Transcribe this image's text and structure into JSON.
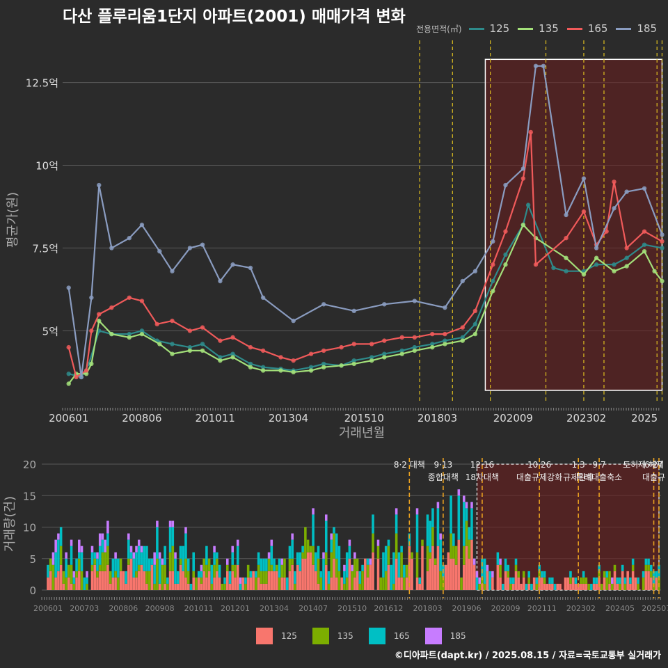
{
  "title": "다산 플루리움1단지 아파트(2001) 매매가격 변화",
  "source": "©디아파트(dapt.kr) / 2025.08.15 / 자료=국토교통부 실거래가",
  "colors": {
    "125": "#2e8b8b",
    "135": "#a3e07a",
    "165": "#f05a5a",
    "185": "#8a9cc0",
    "bar125": "#f8766d",
    "bar135": "#7cae00",
    "bar165": "#00bfc4",
    "bar185": "#c77cff"
  },
  "legend_top": {
    "title": "전용면적(㎡)",
    "items": [
      "125",
      "135",
      "165",
      "185"
    ]
  },
  "legend_bottom": {
    "items": [
      "125",
      "135",
      "165",
      "185"
    ]
  },
  "chart_data": [
    {
      "type": "line",
      "title": "다산 플루리움1단지 아파트(2001) 매매가격 변화",
      "xlabel": "거래년월",
      "ylabel": "평균가(원)",
      "x_ticks": [
        "200601",
        "200806",
        "201011",
        "201304",
        "201510",
        "201803",
        "202009",
        "202302",
        "2025"
      ],
      "y_ticks": [
        "5억",
        "7.5억",
        "10억",
        "12.5억"
      ],
      "ylim": [
        2.8,
        13.9
      ],
      "highlight_box": {
        "x": [
          "2019-10",
          "2025-08"
        ],
        "y": [
          3.2,
          13.2
        ]
      },
      "vlines": [
        "2017-08",
        "2018-09",
        "2019-12",
        "2021-10",
        "2023-01",
        "2023-09",
        "2025-06",
        "2025-08"
      ],
      "series": [
        {
          "name": "125",
          "points": [
            [
              "2006-01",
              3.7
            ],
            [
              "2006-06",
              3.6
            ],
            [
              "2006-09",
              4.0
            ],
            [
              "2007-01",
              5.0
            ],
            [
              "2007-06",
              4.9
            ],
            [
              "2008-01",
              4.9
            ],
            [
              "2008-06",
              5.0
            ],
            [
              "2008-12",
              4.7
            ],
            [
              "2009-06",
              4.6
            ],
            [
              "2010-01",
              4.5
            ],
            [
              "2010-06",
              4.6
            ],
            [
              "2011-01",
              4.2
            ],
            [
              "2011-06",
              4.3
            ],
            [
              "2012-01",
              4.0
            ],
            [
              "2012-06",
              3.9
            ],
            [
              "2013-01",
              3.85
            ],
            [
              "2013-06",
              3.8
            ],
            [
              "2014-01",
              3.9
            ],
            [
              "2014-06",
              4.0
            ],
            [
              "2015-01",
              3.95
            ],
            [
              "2015-06",
              4.1
            ],
            [
              "2016-01",
              4.2
            ],
            [
              "2016-06",
              4.3
            ],
            [
              "2017-01",
              4.4
            ],
            [
              "2017-06",
              4.5
            ],
            [
              "2018-01",
              4.6
            ],
            [
              "2018-06",
              4.7
            ],
            [
              "2019-01",
              4.8
            ],
            [
              "2019-06",
              5.2
            ],
            [
              "2020-01",
              6.5
            ],
            [
              "2020-06",
              7.3
            ],
            [
              "2021-01",
              8.2
            ],
            [
              "2021-03",
              8.8
            ],
            [
              "2022-01",
              6.9
            ],
            [
              "2022-06",
              6.8
            ],
            [
              "2023-01",
              6.8
            ],
            [
              "2023-06",
              7.0
            ],
            [
              "2024-01",
              7.0
            ],
            [
              "2024-06",
              7.2
            ],
            [
              "2025-01",
              7.6
            ],
            [
              "2025-08",
              7.5
            ]
          ]
        },
        {
          "name": "135",
          "points": [
            [
              "2006-01",
              3.4
            ],
            [
              "2006-04",
              3.7
            ],
            [
              "2006-08",
              3.7
            ],
            [
              "2006-10",
              4.0
            ],
            [
              "2007-01",
              5.3
            ],
            [
              "2007-06",
              4.9
            ],
            [
              "2008-01",
              4.8
            ],
            [
              "2008-06",
              4.9
            ],
            [
              "2009-01",
              4.6
            ],
            [
              "2009-06",
              4.3
            ],
            [
              "2010-01",
              4.4
            ],
            [
              "2010-06",
              4.4
            ],
            [
              "2011-01",
              4.1
            ],
            [
              "2011-06",
              4.2
            ],
            [
              "2012-01",
              3.9
            ],
            [
              "2012-06",
              3.8
            ],
            [
              "2013-01",
              3.8
            ],
            [
              "2013-06",
              3.75
            ],
            [
              "2014-01",
              3.8
            ],
            [
              "2014-06",
              3.9
            ],
            [
              "2015-01",
              3.95
            ],
            [
              "2015-06",
              4.0
            ],
            [
              "2016-01",
              4.1
            ],
            [
              "2016-06",
              4.2
            ],
            [
              "2017-01",
              4.3
            ],
            [
              "2017-06",
              4.4
            ],
            [
              "2018-01",
              4.5
            ],
            [
              "2018-06",
              4.6
            ],
            [
              "2019-01",
              4.7
            ],
            [
              "2019-06",
              4.9
            ],
            [
              "2020-01",
              6.2
            ],
            [
              "2020-06",
              7.0
            ],
            [
              "2021-01",
              8.2
            ],
            [
              "2021-06",
              7.8
            ],
            [
              "2022-06",
              7.2
            ],
            [
              "2023-01",
              6.7
            ],
            [
              "2023-06",
              7.2
            ],
            [
              "2024-01",
              6.8
            ],
            [
              "2024-06",
              6.95
            ],
            [
              "2025-01",
              7.4
            ],
            [
              "2025-05",
              6.8
            ],
            [
              "2025-08",
              6.5
            ]
          ]
        },
        {
          "name": "165",
          "points": [
            [
              "2006-01",
              4.5
            ],
            [
              "2006-04",
              3.6
            ],
            [
              "2006-08",
              3.8
            ],
            [
              "2006-10",
              5.0
            ],
            [
              "2007-01",
              5.5
            ],
            [
              "2007-06",
              5.7
            ],
            [
              "2008-01",
              6.0
            ],
            [
              "2008-06",
              5.9
            ],
            [
              "2008-12",
              5.2
            ],
            [
              "2009-06",
              5.3
            ],
            [
              "2010-01",
              5.0
            ],
            [
              "2010-06",
              5.1
            ],
            [
              "2011-01",
              4.7
            ],
            [
              "2011-06",
              4.8
            ],
            [
              "2012-01",
              4.5
            ],
            [
              "2012-06",
              4.4
            ],
            [
              "2013-01",
              4.2
            ],
            [
              "2013-06",
              4.1
            ],
            [
              "2014-01",
              4.3
            ],
            [
              "2014-06",
              4.4
            ],
            [
              "2015-01",
              4.5
            ],
            [
              "2015-06",
              4.6
            ],
            [
              "2016-01",
              4.6
            ],
            [
              "2016-06",
              4.7
            ],
            [
              "2017-01",
              4.8
            ],
            [
              "2017-06",
              4.8
            ],
            [
              "2018-01",
              4.9
            ],
            [
              "2018-06",
              4.9
            ],
            [
              "2019-01",
              5.1
            ],
            [
              "2019-06",
              5.6
            ],
            [
              "2020-01",
              7.0
            ],
            [
              "2020-06",
              8.0
            ],
            [
              "2021-01",
              9.6
            ],
            [
              "2021-04",
              11.0
            ],
            [
              "2021-06",
              7.0
            ],
            [
              "2022-06",
              7.8
            ],
            [
              "2023-01",
              8.6
            ],
            [
              "2023-06",
              7.6
            ],
            [
              "2023-10",
              8.0
            ],
            [
              "2024-01",
              9.5
            ],
            [
              "2024-06",
              7.5
            ],
            [
              "2025-01",
              8.0
            ],
            [
              "2025-08",
              7.7
            ]
          ]
        },
        {
          "name": "185",
          "points": [
            [
              "2006-01",
              6.3
            ],
            [
              "2006-06",
              3.6
            ],
            [
              "2006-10",
              6.0
            ],
            [
              "2007-01",
              9.4
            ],
            [
              "2007-06",
              7.5
            ],
            [
              "2008-01",
              7.8
            ],
            [
              "2008-06",
              8.2
            ],
            [
              "2009-01",
              7.4
            ],
            [
              "2009-06",
              6.8
            ],
            [
              "2010-01",
              7.5
            ],
            [
              "2010-06",
              7.6
            ],
            [
              "2011-01",
              6.5
            ],
            [
              "2011-06",
              7.0
            ],
            [
              "2012-01",
              6.9
            ],
            [
              "2012-06",
              6.0
            ],
            [
              "2013-06",
              5.3
            ],
            [
              "2014-06",
              5.8
            ],
            [
              "2015-06",
              5.6
            ],
            [
              "2016-06",
              5.8
            ],
            [
              "2017-06",
              5.9
            ],
            [
              "2018-06",
              5.7
            ],
            [
              "2019-01",
              6.5
            ],
            [
              "2019-06",
              6.8
            ],
            [
              "2020-01",
              7.7
            ],
            [
              "2020-06",
              9.4
            ],
            [
              "2021-01",
              9.9
            ],
            [
              "2021-06",
              13.0
            ],
            [
              "2021-09",
              13.0
            ],
            [
              "2022-06",
              8.5
            ],
            [
              "2023-01",
              9.6
            ],
            [
              "2023-06",
              7.5
            ],
            [
              "2024-01",
              8.7
            ],
            [
              "2024-06",
              9.2
            ],
            [
              "2025-01",
              9.3
            ],
            [
              "2025-08",
              7.9
            ]
          ]
        }
      ]
    },
    {
      "type": "bar",
      "stacked": true,
      "xlabel": "",
      "ylabel": "거래량(건)",
      "y_ticks": [
        "0",
        "5",
        "10",
        "15",
        "20"
      ],
      "ylim": [
        0,
        21
      ],
      "x_ticks": [
        "200601",
        "200703",
        "200806",
        "200908",
        "201011",
        "201201",
        "201304",
        "201407",
        "201510",
        "201612",
        "201803",
        "201906",
        "202009",
        "202111",
        "202302",
        "202405",
        "202507"
      ],
      "highlight_box": {
        "x": [
          "2019-10",
          "2025-08"
        ],
        "y": [
          0,
          20
        ]
      },
      "vlines": [
        "2017-08",
        "2018-09",
        "2019-12",
        "2021-10",
        "2023-01",
        "2023-09",
        "2025-06",
        "2025-08"
      ],
      "annotations": [
        {
          "x": "2017-08",
          "lines": [
            "8·2 대책"
          ]
        },
        {
          "x": "2018-09",
          "lines": [
            "9·13",
            "종합대책"
          ]
        },
        {
          "x": "2019-12",
          "lines": [
            "12·16",
            "18차대책"
          ]
        },
        {
          "x": "2021-10",
          "lines": [
            "10·26",
            "대출규제강화"
          ]
        },
        {
          "x": "2023-01",
          "lines": [
            "1·3",
            "규제완화"
          ]
        },
        {
          "x": "2023-09",
          "lines": [
            "9·7",
            "특례대출축소"
          ]
        },
        {
          "x": "2025-02",
          "lines": [
            "토허제 해제"
          ]
        },
        {
          "x": "2025-06",
          "lines": [
            "6·27",
            "대출규"
          ]
        }
      ],
      "series": [
        {
          "name": "125",
          "monthly_volume_profile": [
            [
              2006,
              2.0
            ],
            [
              2006.4,
              6.0
            ],
            [
              2006.5,
              1.0
            ],
            [
              2007,
              3.0
            ],
            [
              2009,
              3.0
            ],
            [
              2009.5,
              4.0
            ],
            [
              2011,
              2.0
            ],
            [
              2013,
              2.0
            ],
            [
              2014.5,
              4.0
            ],
            [
              2016,
              3.0
            ],
            [
              2017.5,
              4.0
            ],
            [
              2019.5,
              5.0
            ],
            [
              2020.5,
              2.0
            ],
            [
              2022.5,
              1.0
            ],
            [
              2024,
              1.5
            ],
            [
              2025.5,
              2.0
            ]
          ]
        },
        {
          "name": "135",
          "monthly_volume_profile": [
            [
              2006,
              1.0
            ],
            [
              2006.4,
              8.0
            ],
            [
              2006.5,
              1.5
            ],
            [
              2007,
              2.0
            ],
            [
              2009,
              2.0
            ],
            [
              2009.5,
              3.0
            ],
            [
              2011,
              1.5
            ],
            [
              2013,
              1.5
            ],
            [
              2014.5,
              3.0
            ],
            [
              2016,
              2.0
            ],
            [
              2017.5,
              2.5
            ],
            [
              2019.5,
              3.0
            ],
            [
              2020.5,
              1.0
            ],
            [
              2022.5,
              0.5
            ],
            [
              2024,
              1.0
            ],
            [
              2025.5,
              1.0
            ]
          ]
        },
        {
          "name": "165",
          "monthly_volume_profile": [
            [
              2006,
              2.0
            ],
            [
              2006.4,
              5.0
            ],
            [
              2006.5,
              2.0
            ],
            [
              2007,
              2.0
            ],
            [
              2009,
              2.0
            ],
            [
              2009.5,
              3.0
            ],
            [
              2011,
              2.0
            ],
            [
              2013,
              1.5
            ],
            [
              2014.5,
              3.0
            ],
            [
              2016,
              2.0
            ],
            [
              2017.5,
              3.0
            ],
            [
              2019.5,
              4.0
            ],
            [
              2020.5,
              1.0
            ],
            [
              2022.5,
              0.5
            ],
            [
              2024,
              1.0
            ],
            [
              2025.5,
              1.0
            ]
          ]
        },
        {
          "name": "185",
          "monthly_volume_profile": [
            [
              2006,
              1.0
            ],
            [
              2006.4,
              1.5
            ],
            [
              2006.5,
              0.8
            ],
            [
              2007,
              1.0
            ],
            [
              2009,
              1.0
            ],
            [
              2009.5,
              1.2
            ],
            [
              2011,
              0.6
            ],
            [
              2013,
              0.4
            ],
            [
              2014.5,
              0.6
            ],
            [
              2016,
              0.3
            ],
            [
              2017.5,
              0.4
            ],
            [
              2019.5,
              0.6
            ],
            [
              2020.5,
              0.3
            ],
            [
              2022.5,
              0.2
            ],
            [
              2024,
              0.3
            ],
            [
              2025.5,
              0.3
            ]
          ]
        }
      ]
    }
  ]
}
